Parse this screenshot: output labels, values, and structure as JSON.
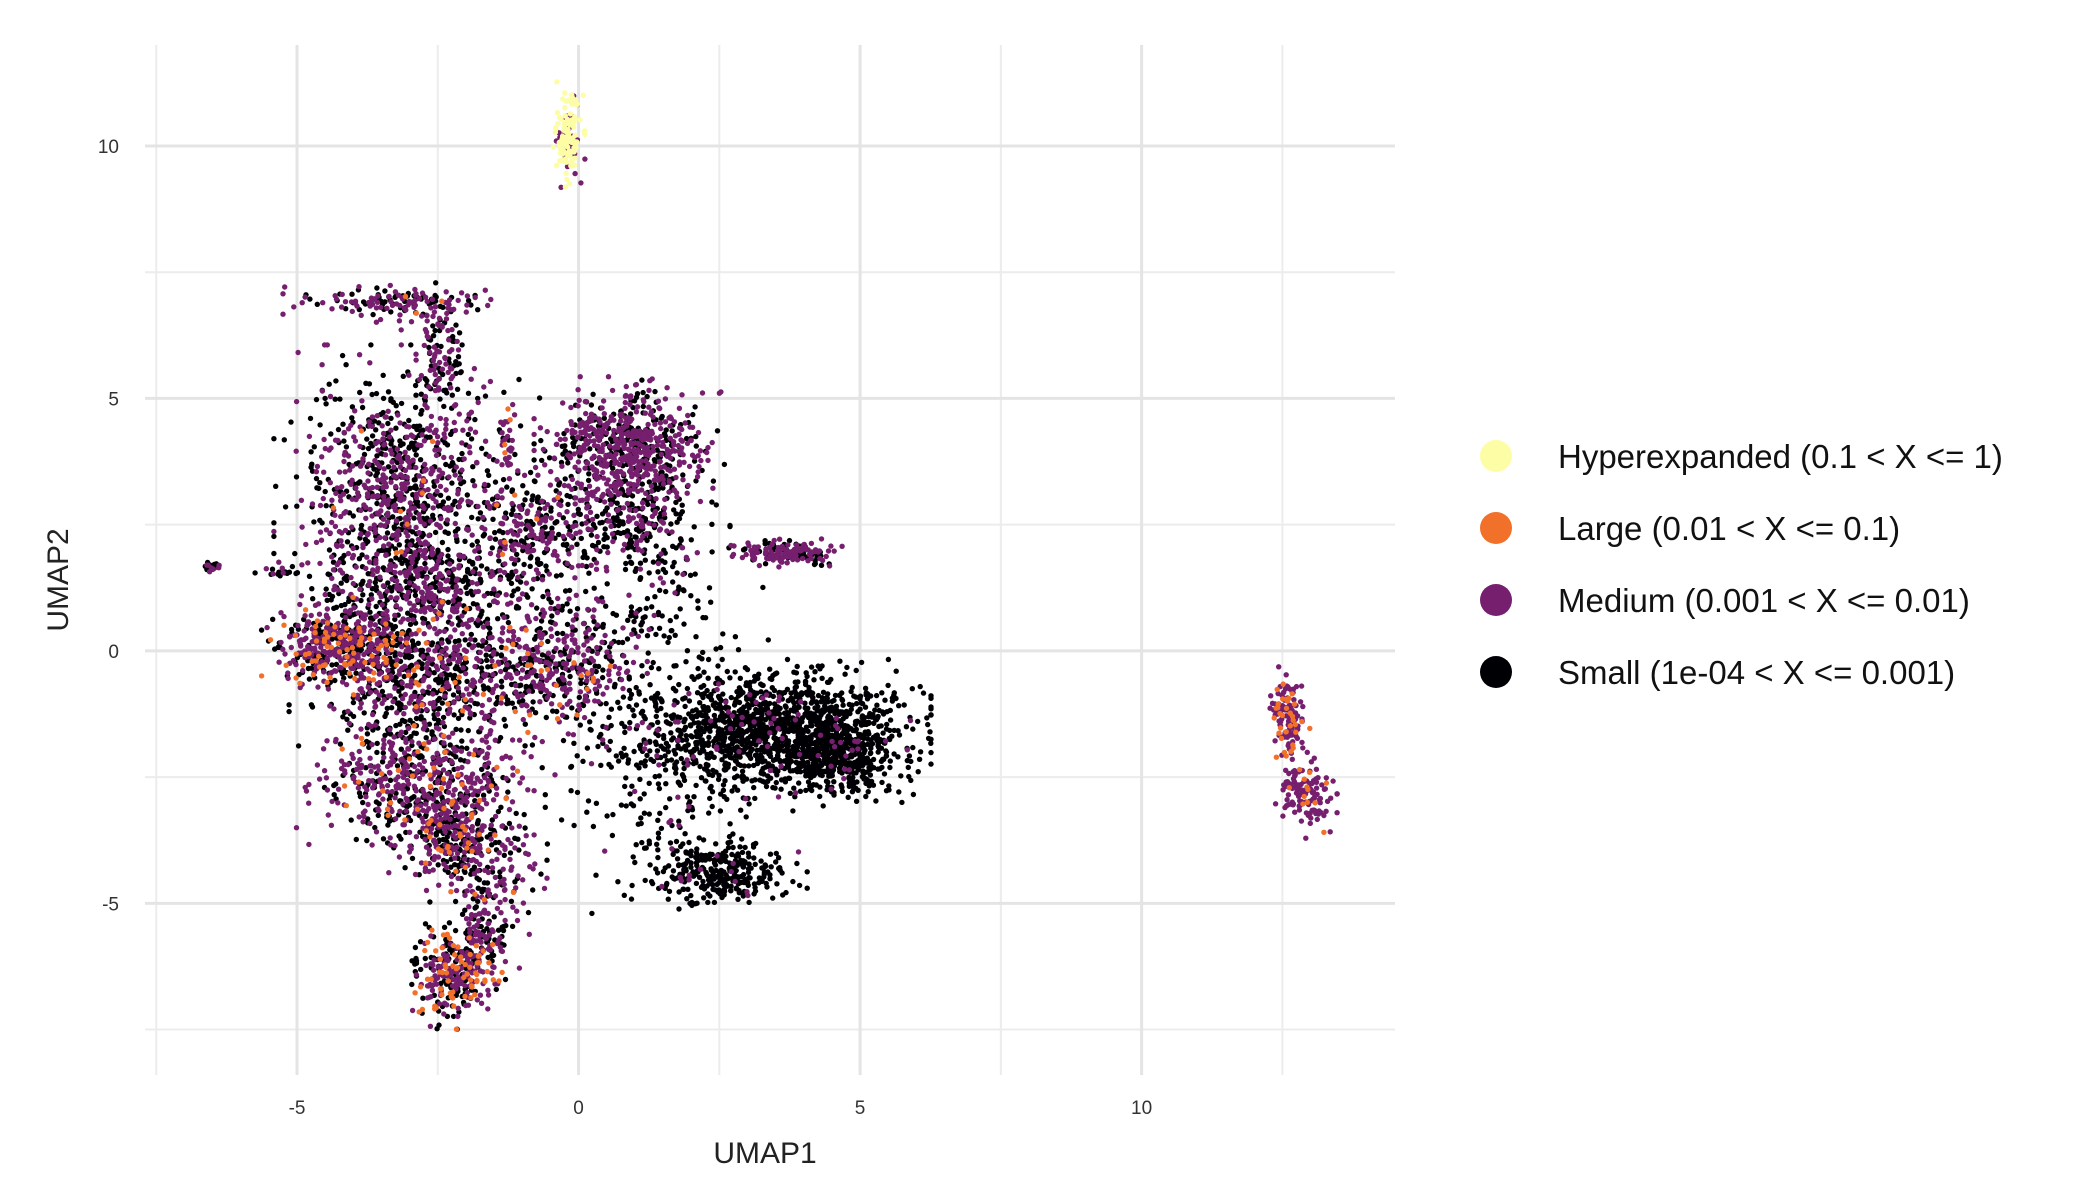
{
  "chart_data": {
    "type": "scatter",
    "title": "",
    "xlabel": "UMAP1",
    "ylabel": "UMAP2",
    "xlim": [
      -7.7,
      14.5
    ],
    "ylim": [
      -8.4,
      12.0
    ],
    "xticks": [
      -5,
      0,
      5,
      10
    ],
    "yticks": [
      -5,
      0,
      5,
      10
    ],
    "xtick_labels": [
      "-5",
      "0",
      "5",
      "10"
    ],
    "ytick_labels": [
      "-5",
      "0",
      "5",
      "10"
    ],
    "grid": true,
    "legend_position": "right",
    "series": [
      {
        "name": "Hyperexpanded (0.1 < X <= 1)",
        "color": "#FCFDA4"
      },
      {
        "name": "Large (0.01 < X <= 0.1)",
        "color": "#F1702A"
      },
      {
        "name": "Medium (0.001 < X <= 0.01)",
        "color": "#761F6E"
      },
      {
        "name": "Small (1e-04 < X <= 0.001)",
        "color": "#000004"
      }
    ],
    "clusters": [
      {
        "cx": -0.2,
        "cy": 10.2,
        "sx": 0.12,
        "sy": 0.42,
        "n": 140,
        "mix": [
          0.72,
          0.0,
          0.28,
          0.0
        ]
      },
      {
        "cx": -3.3,
        "cy": 6.9,
        "sx": 0.75,
        "sy": 0.15,
        "n": 150,
        "mix": [
          0.0,
          0.02,
          0.55,
          0.43
        ]
      },
      {
        "cx": -2.5,
        "cy": 5.8,
        "sx": 0.25,
        "sy": 0.55,
        "n": 120,
        "mix": [
          0.0,
          0.0,
          0.45,
          0.55
        ]
      },
      {
        "cx": -3.2,
        "cy": 3.2,
        "sx": 0.85,
        "sy": 1.1,
        "n": 900,
        "mix": [
          0.0,
          0.01,
          0.45,
          0.54
        ]
      },
      {
        "cx": -2.7,
        "cy": 1.3,
        "sx": 0.9,
        "sy": 0.6,
        "n": 500,
        "mix": [
          0.0,
          0.02,
          0.4,
          0.58
        ]
      },
      {
        "cx": -4.2,
        "cy": 0.1,
        "sx": 0.55,
        "sy": 0.35,
        "n": 450,
        "mix": [
          0.0,
          0.18,
          0.5,
          0.32
        ]
      },
      {
        "cx": -2.8,
        "cy": -0.6,
        "sx": 0.9,
        "sy": 0.65,
        "n": 600,
        "mix": [
          0.0,
          0.03,
          0.42,
          0.55
        ]
      },
      {
        "cx": -2.8,
        "cy": -2.6,
        "sx": 0.85,
        "sy": 0.6,
        "n": 550,
        "mix": [
          0.0,
          0.06,
          0.52,
          0.42
        ]
      },
      {
        "cx": -2.3,
        "cy": -3.6,
        "sx": 0.45,
        "sy": 0.45,
        "n": 250,
        "mix": [
          0.0,
          0.1,
          0.5,
          0.4
        ]
      },
      {
        "cx": -1.6,
        "cy": -4.4,
        "sx": 0.4,
        "sy": 0.5,
        "n": 150,
        "mix": [
          0.0,
          0.02,
          0.45,
          0.53
        ]
      },
      {
        "cx": -2.2,
        "cy": -6.4,
        "sx": 0.35,
        "sy": 0.42,
        "n": 300,
        "mix": [
          0.0,
          0.22,
          0.42,
          0.36
        ]
      },
      {
        "cx": -1.7,
        "cy": -5.6,
        "sx": 0.25,
        "sy": 0.3,
        "n": 100,
        "mix": [
          0.0,
          0.03,
          0.55,
          0.42
        ]
      },
      {
        "cx": -0.8,
        "cy": 2.4,
        "sx": 0.5,
        "sy": 0.6,
        "n": 250,
        "mix": [
          0.0,
          0.02,
          0.4,
          0.58
        ]
      },
      {
        "cx": -0.6,
        "cy": -0.4,
        "sx": 0.7,
        "sy": 0.55,
        "n": 400,
        "mix": [
          0.0,
          0.04,
          0.5,
          0.46
        ]
      },
      {
        "cx": 0.9,
        "cy": 4.0,
        "sx": 0.65,
        "sy": 0.55,
        "n": 700,
        "mix": [
          0.0,
          0.0,
          0.66,
          0.34
        ]
      },
      {
        "cx": 1.0,
        "cy": 2.5,
        "sx": 0.65,
        "sy": 0.5,
        "n": 250,
        "mix": [
          0.0,
          0.0,
          0.35,
          0.65
        ]
      },
      {
        "cx": 0.9,
        "cy": 0.6,
        "sx": 0.95,
        "sy": 0.9,
        "n": 200,
        "mix": [
          0.0,
          0.0,
          0.15,
          0.85
        ]
      },
      {
        "cx": 1.3,
        "cy": -2.6,
        "sx": 0.95,
        "sy": 1.0,
        "n": 160,
        "mix": [
          0.0,
          0.0,
          0.1,
          0.9
        ]
      },
      {
        "cx": 3.7,
        "cy": 1.95,
        "sx": 0.42,
        "sy": 0.11,
        "n": 160,
        "mix": [
          0.0,
          0.0,
          0.6,
          0.4
        ]
      },
      {
        "cx": 3.4,
        "cy": -1.6,
        "sx": 1.1,
        "sy": 0.55,
        "n": 1300,
        "mix": [
          0.0,
          0.0,
          0.04,
          0.96
        ]
      },
      {
        "cx": 4.6,
        "cy": -2.0,
        "sx": 0.5,
        "sy": 0.45,
        "n": 400,
        "mix": [
          0.0,
          0.0,
          0.02,
          0.98
        ]
      },
      {
        "cx": 2.5,
        "cy": -4.4,
        "sx": 0.6,
        "sy": 0.3,
        "n": 300,
        "mix": [
          0.0,
          0.0,
          0.05,
          0.95
        ]
      },
      {
        "cx": 12.6,
        "cy": -1.3,
        "sx": 0.15,
        "sy": 0.4,
        "n": 130,
        "mix": [
          0.0,
          0.25,
          0.75,
          0.0
        ]
      },
      {
        "cx": 12.9,
        "cy": -2.8,
        "sx": 0.22,
        "sy": 0.35,
        "n": 130,
        "mix": [
          0.0,
          0.12,
          0.88,
          0.0
        ]
      },
      {
        "cx": -6.5,
        "cy": 1.65,
        "sx": 0.07,
        "sy": 0.05,
        "n": 22,
        "mix": [
          0.0,
          0.0,
          0.45,
          0.55
        ]
      },
      {
        "cx": -5.4,
        "cy": 1.55,
        "sx": 0.2,
        "sy": 0.03,
        "n": 14,
        "mix": [
          0.0,
          0.0,
          0.4,
          0.6
        ]
      },
      {
        "cx": -1.25,
        "cy": 4.1,
        "sx": 0.06,
        "sy": 0.4,
        "n": 30,
        "mix": [
          0.0,
          0.15,
          0.85,
          0.0
        ]
      }
    ]
  }
}
